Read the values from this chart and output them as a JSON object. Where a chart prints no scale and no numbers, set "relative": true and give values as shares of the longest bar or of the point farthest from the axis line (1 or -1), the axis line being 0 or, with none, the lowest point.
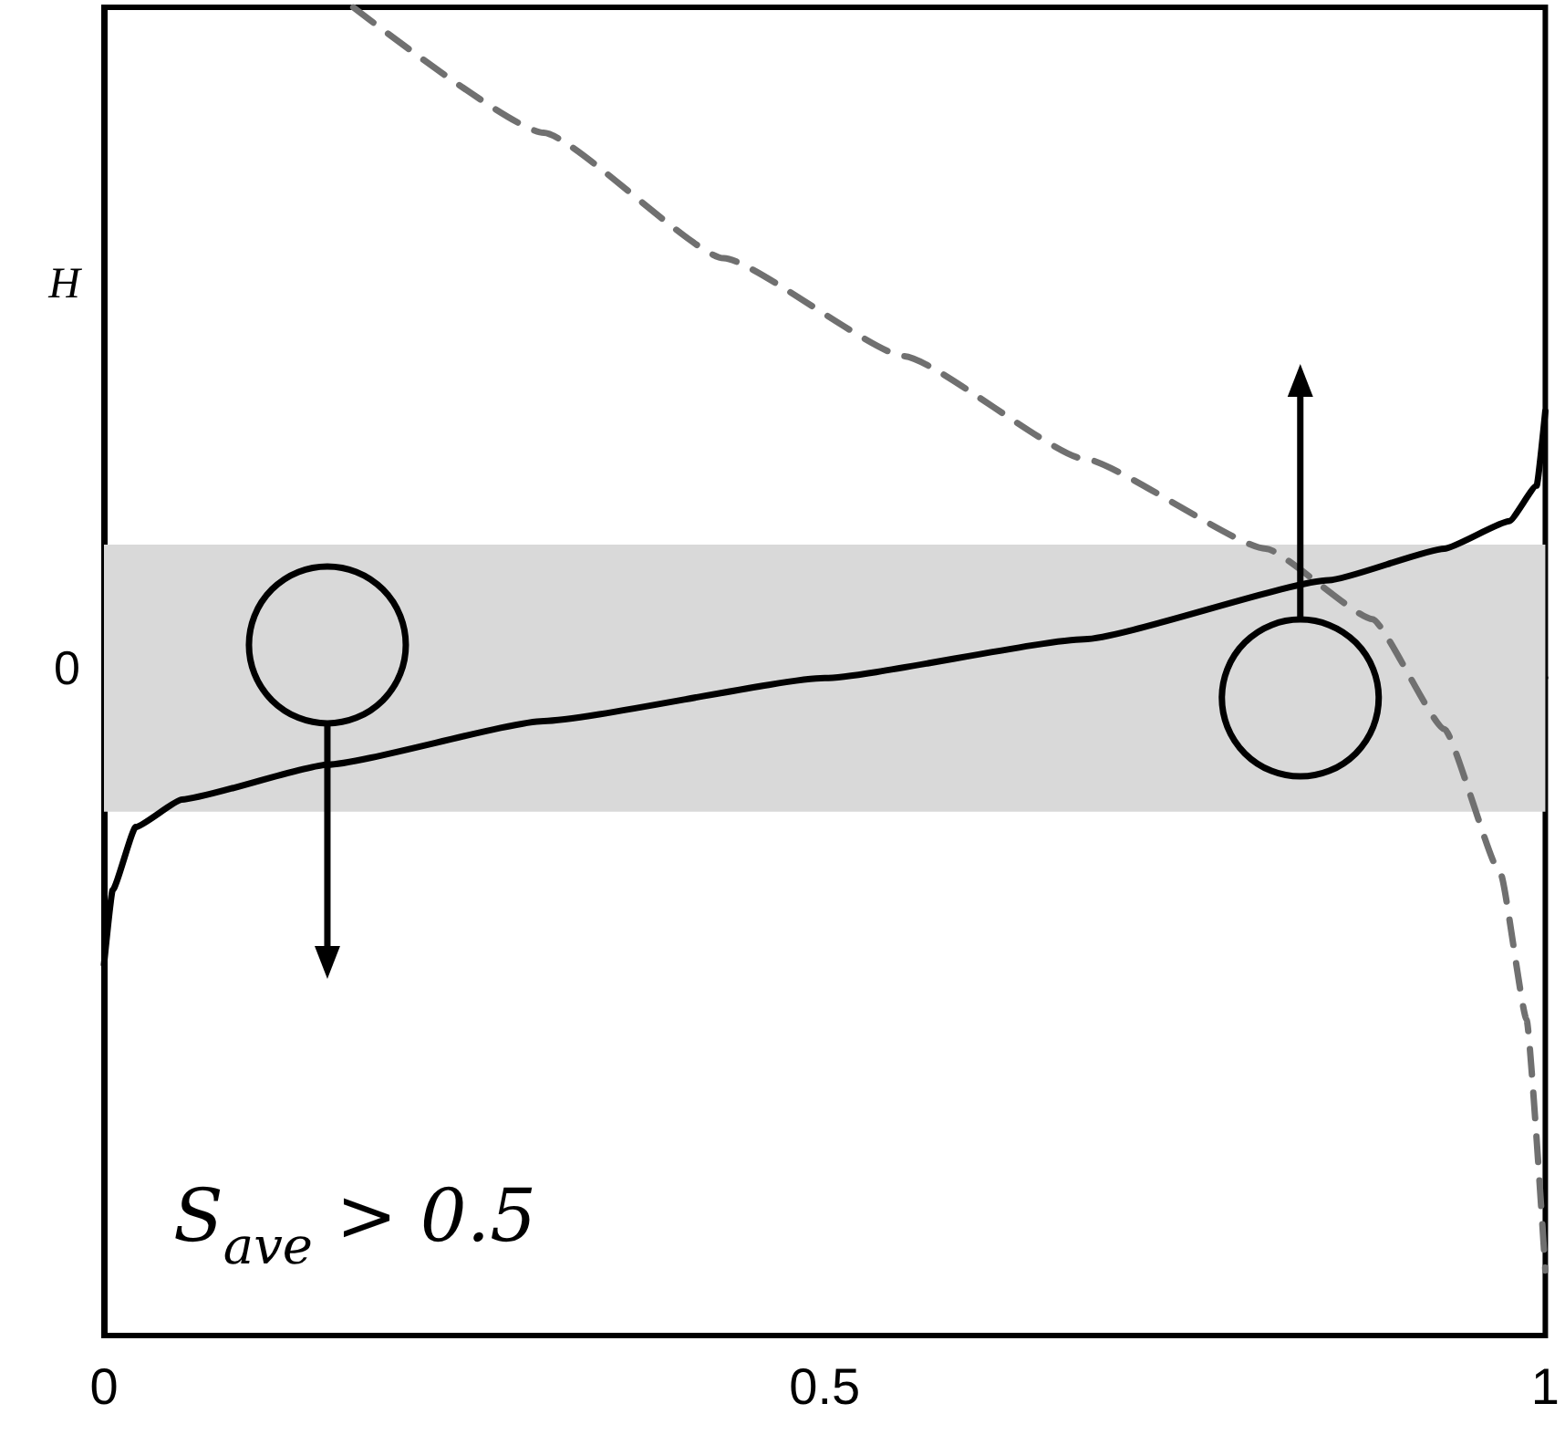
{
  "chart_data": {
    "type": "line",
    "relative": true,
    "xlim": [
      0,
      1
    ],
    "xticks": [
      0,
      0.5,
      1
    ],
    "marker": "none",
    "grid": false,
    "series": [
      {
        "color": "#000000",
        "line_style": "solid",
        "x": [
          0,
          0.006,
          0.022,
          0.054,
          0.155,
          0.305,
          0.5,
          0.68,
          0.85,
          0.93,
          0.975,
          0.994,
          1
        ],
        "values": [
          -0.427,
          -0.316,
          -0.222,
          -0.181,
          -0.129,
          -0.064,
          0,
          0.058,
          0.146,
          0.193,
          0.234,
          0.287,
          0.398
        ]
      },
      {
        "color": "#707070",
        "line_style": "dashed",
        "x": [
          0.173,
          0.305,
          0.43,
          0.555,
          0.68,
          0.806,
          0.88,
          0.93,
          0.969,
          0.987,
          1
        ],
        "values": [
          1,
          0.813,
          0.626,
          0.48,
          0.327,
          0.193,
          0.088,
          -0.076,
          -0.292,
          -0.509,
          -0.883
        ]
      }
    ],
    "bands": [
      {
        "axis": "y",
        "from": -0.199,
        "to": 0.199,
        "color": "#d9d9d9"
      }
    ],
    "annotations": [
      "H",
      "0",
      "S$_{ave}$ > 0.5"
    ]
  }
}
